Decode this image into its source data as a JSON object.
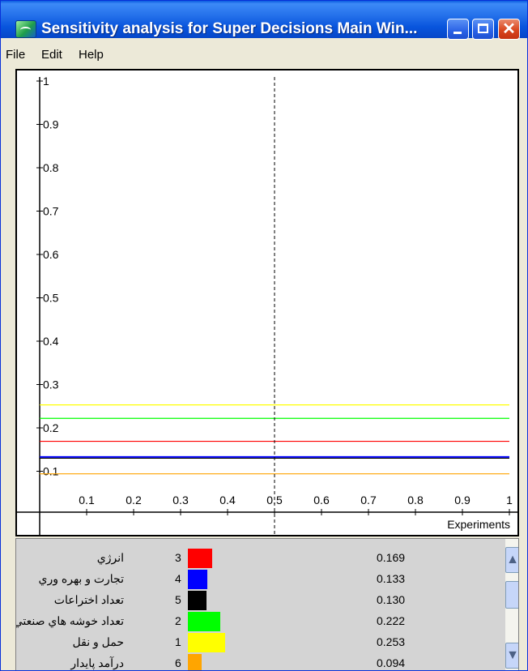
{
  "window": {
    "title": "Sensitivity analysis for Super Decisions Main Win...",
    "controls": {
      "close_glyph": "✕"
    }
  },
  "menu": {
    "items": [
      "File",
      "Edit",
      "Help"
    ]
  },
  "chart_data": {
    "type": "line",
    "xlabel": "Experiments",
    "ylabel": "",
    "xlim": [
      0,
      1
    ],
    "ylim": [
      0,
      1
    ],
    "x_ticks": [
      "0.1",
      "0.2",
      "0.3",
      "0.4",
      "0.5",
      "0.6",
      "0.7",
      "0.8",
      "0.9",
      "1"
    ],
    "y_ticks": [
      "0.1",
      "0.2",
      "0.3",
      "0.4",
      "0.5",
      "0.6",
      "0.7",
      "0.8",
      "0.9",
      "1"
    ],
    "marker_x": 0.5,
    "series": [
      {
        "name": "انرژي",
        "number": "3",
        "color": "#ff0000",
        "values": [
          0.169,
          0.169
        ]
      },
      {
        "name": "تجارت و بهره وري",
        "number": "4",
        "color": "#0000ff",
        "values": [
          0.133,
          0.133
        ]
      },
      {
        "name": "تعداد اختراعات",
        "number": "5",
        "color": "#000000",
        "values": [
          0.13,
          0.13
        ]
      },
      {
        "name": "تعداد خوشه هاي صنعتي",
        "number": "2",
        "color": "#00ff00",
        "values": [
          0.222,
          0.222
        ]
      },
      {
        "name": "حمل و نقل",
        "number": "1",
        "color": "#ffff00",
        "values": [
          0.253,
          0.253
        ]
      },
      {
        "name": "درآمد پايدار",
        "number": "6",
        "color": "#ffa500",
        "values": [
          0.094,
          0.094
        ]
      }
    ],
    "x": [
      0,
      1
    ]
  },
  "legend": {
    "rows": [
      {
        "name": "انرژي",
        "number": "3",
        "value": "0.169",
        "color": "#ff0000",
        "value_num": 0.169
      },
      {
        "name": "تجارت و بهره وري",
        "number": "4",
        "value": "0.133",
        "color": "#0000ff",
        "value_num": 0.133
      },
      {
        "name": "تعداد اختراعات",
        "number": "5",
        "value": "0.130",
        "color": "#000000",
        "value_num": 0.13
      },
      {
        "name": "تعداد خوشه هاي صنعتي",
        "number": "2",
        "value": "0.222",
        "color": "#00ff00",
        "value_num": 0.222
      },
      {
        "name": "حمل و نقل",
        "number": "1",
        "value": "0.253",
        "color": "#ffff00",
        "value_num": 0.253
      },
      {
        "name": "درآمد پايدار",
        "number": "6",
        "value": "0.094",
        "color": "#ffa500",
        "value_num": 0.094
      }
    ]
  },
  "scrollbar": {
    "up_glyph": "▲",
    "down_glyph": "▼"
  }
}
